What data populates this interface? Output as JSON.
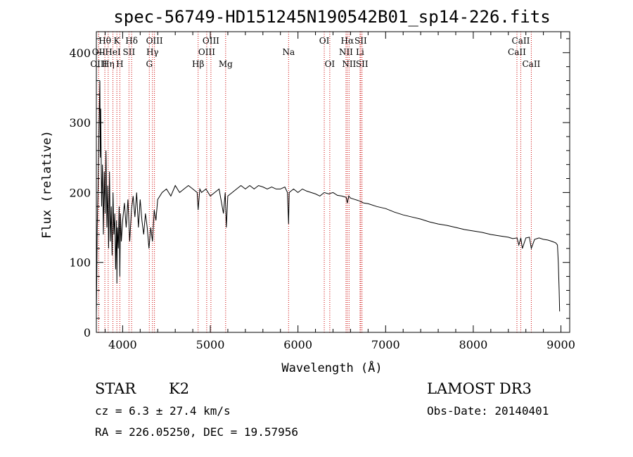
{
  "title": "spec-56749-HD151245N190542B01_sp14-226.fits",
  "info": {
    "object_class": "STAR",
    "subclass": "K2",
    "redshift_line": "cz = 6.3 ± 27.4 km/s",
    "coords_line": "RA = 226.05250, DEC =  19.57956",
    "survey": "LAMOST DR3",
    "obs_date_line": "Obs-Date: 20140401"
  },
  "colors": {
    "background": "#ffffff",
    "axes": "#000000",
    "spectrum": "#000000",
    "line_markers": "#cc0000"
  },
  "chart_data": {
    "type": "line",
    "xlabel": "Wavelength (Å)",
    "ylabel": "Flux (relative)",
    "xlim": [
      3700,
      9100
    ],
    "ylim": [
      0,
      430
    ],
    "x_ticks": [
      4000,
      5000,
      6000,
      7000,
      8000,
      9000
    ],
    "y_ticks": [
      0,
      100,
      200,
      300,
      400
    ],
    "grid": false,
    "series": [
      {
        "name": "flux",
        "x": [
          3700,
          3705,
          3710,
          3720,
          3730,
          3740,
          3745,
          3750,
          3760,
          3770,
          3780,
          3790,
          3800,
          3810,
          3820,
          3830,
          3840,
          3850,
          3860,
          3870,
          3880,
          3890,
          3900,
          3910,
          3920,
          3930,
          3934,
          3940,
          3950,
          3960,
          3968,
          3975,
          3985,
          4000,
          4020,
          4040,
          4060,
          4080,
          4100,
          4120,
          4140,
          4160,
          4180,
          4200,
          4220,
          4240,
          4260,
          4280,
          4300,
          4320,
          4340,
          4360,
          4380,
          4400,
          4450,
          4500,
          4550,
          4600,
          4650,
          4700,
          4750,
          4800,
          4850,
          4861,
          4880,
          4900,
          4950,
          5000,
          5050,
          5100,
          5150,
          5170,
          5183,
          5200,
          5250,
          5300,
          5350,
          5400,
          5450,
          5500,
          5550,
          5600,
          5650,
          5700,
          5750,
          5800,
          5850,
          5880,
          5893,
          5900,
          5950,
          6000,
          6050,
          6100,
          6150,
          6200,
          6250,
          6300,
          6350,
          6400,
          6450,
          6500,
          6550,
          6563,
          6580,
          6600,
          6650,
          6700,
          6750,
          6800,
          6900,
          7000,
          7100,
          7200,
          7300,
          7400,
          7500,
          7600,
          7700,
          7800,
          7900,
          8000,
          8100,
          8200,
          8300,
          8400,
          8450,
          8500,
          8520,
          8542,
          8560,
          8600,
          8640,
          8662,
          8700,
          8750,
          8800,
          8850,
          8900,
          8940,
          8960,
          8970,
          8980,
          8985
        ],
        "y": [
          25,
          80,
          150,
          210,
          290,
          360,
          250,
          320,
          180,
          240,
          140,
          230,
          170,
          260,
          150,
          210,
          120,
          230,
          130,
          180,
          110,
          200,
          140,
          170,
          90,
          160,
          70,
          150,
          120,
          180,
          80,
          170,
          130,
          160,
          185,
          150,
          190,
          130,
          175,
          195,
          165,
          200,
          150,
          190,
          160,
          140,
          170,
          150,
          120,
          150,
          130,
          175,
          160,
          190,
          200,
          205,
          195,
          210,
          200,
          205,
          210,
          205,
          200,
          175,
          205,
          200,
          205,
          195,
          200,
          205,
          170,
          200,
          150,
          195,
          200,
          205,
          210,
          205,
          210,
          205,
          210,
          208,
          205,
          208,
          205,
          205,
          208,
          200,
          155,
          200,
          205,
          200,
          205,
          202,
          200,
          198,
          195,
          200,
          198,
          200,
          196,
          195,
          193,
          185,
          195,
          192,
          190,
          188,
          185,
          184,
          180,
          177,
          172,
          168,
          165,
          162,
          158,
          155,
          153,
          150,
          147,
          145,
          143,
          140,
          138,
          136,
          134,
          135,
          125,
          135,
          120,
          135,
          136,
          120,
          133,
          135,
          133,
          132,
          130,
          128,
          125,
          100,
          60,
          30
        ]
      }
    ],
    "spectral_lines": [
      {
        "label": "Hθ",
        "wavelength": 3797,
        "row": 1
      },
      {
        "label": "OII",
        "wavelength": 3727,
        "row": 2
      },
      {
        "label": "OIII",
        "wavelength": 3727,
        "row": 3
      },
      {
        "label": "K",
        "wavelength": 3934,
        "row": 1
      },
      {
        "label": "HeI",
        "wavelength": 3889,
        "row": 2
      },
      {
        "label": "Hη",
        "wavelength": 3835,
        "row": 3
      },
      {
        "label": "Hδ",
        "wavelength": 4102,
        "row": 1
      },
      {
        "label": "SII",
        "wavelength": 4072,
        "row": 2
      },
      {
        "label": "H",
        "wavelength": 3968,
        "row": 3
      },
      {
        "label": "OIII",
        "wavelength": 4363,
        "row": 1
      },
      {
        "label": "Hγ",
        "wavelength": 4340,
        "row": 2
      },
      {
        "label": "G",
        "wavelength": 4304,
        "row": 3
      },
      {
        "label": "OIII",
        "wavelength": 5007,
        "row": 1
      },
      {
        "label": "OIII",
        "wavelength": 4959,
        "row": 2
      },
      {
        "label": "Hβ",
        "wavelength": 4861,
        "row": 3
      },
      {
        "label": "Mg",
        "wavelength": 5175,
        "row": 3
      },
      {
        "label": "Na",
        "wavelength": 5893,
        "row": 2
      },
      {
        "label": "OI",
        "wavelength": 6300,
        "row": 1
      },
      {
        "label": "OI",
        "wavelength": 6363,
        "row": 3
      },
      {
        "label": "Hα",
        "wavelength": 6563,
        "row": 1
      },
      {
        "label": "SII",
        "wavelength": 6716,
        "row": 1
      },
      {
        "label": "NII",
        "wavelength": 6548,
        "row": 2
      },
      {
        "label": "Li",
        "wavelength": 6708,
        "row": 2
      },
      {
        "label": "NII",
        "wavelength": 6583,
        "row": 3
      },
      {
        "label": "SII",
        "wavelength": 6731,
        "row": 3
      },
      {
        "label": "CaII",
        "wavelength": 8542,
        "row": 1
      },
      {
        "label": "CaII",
        "wavelength": 8498,
        "row": 2
      },
      {
        "label": "CaII",
        "wavelength": 8662,
        "row": 3
      }
    ]
  }
}
